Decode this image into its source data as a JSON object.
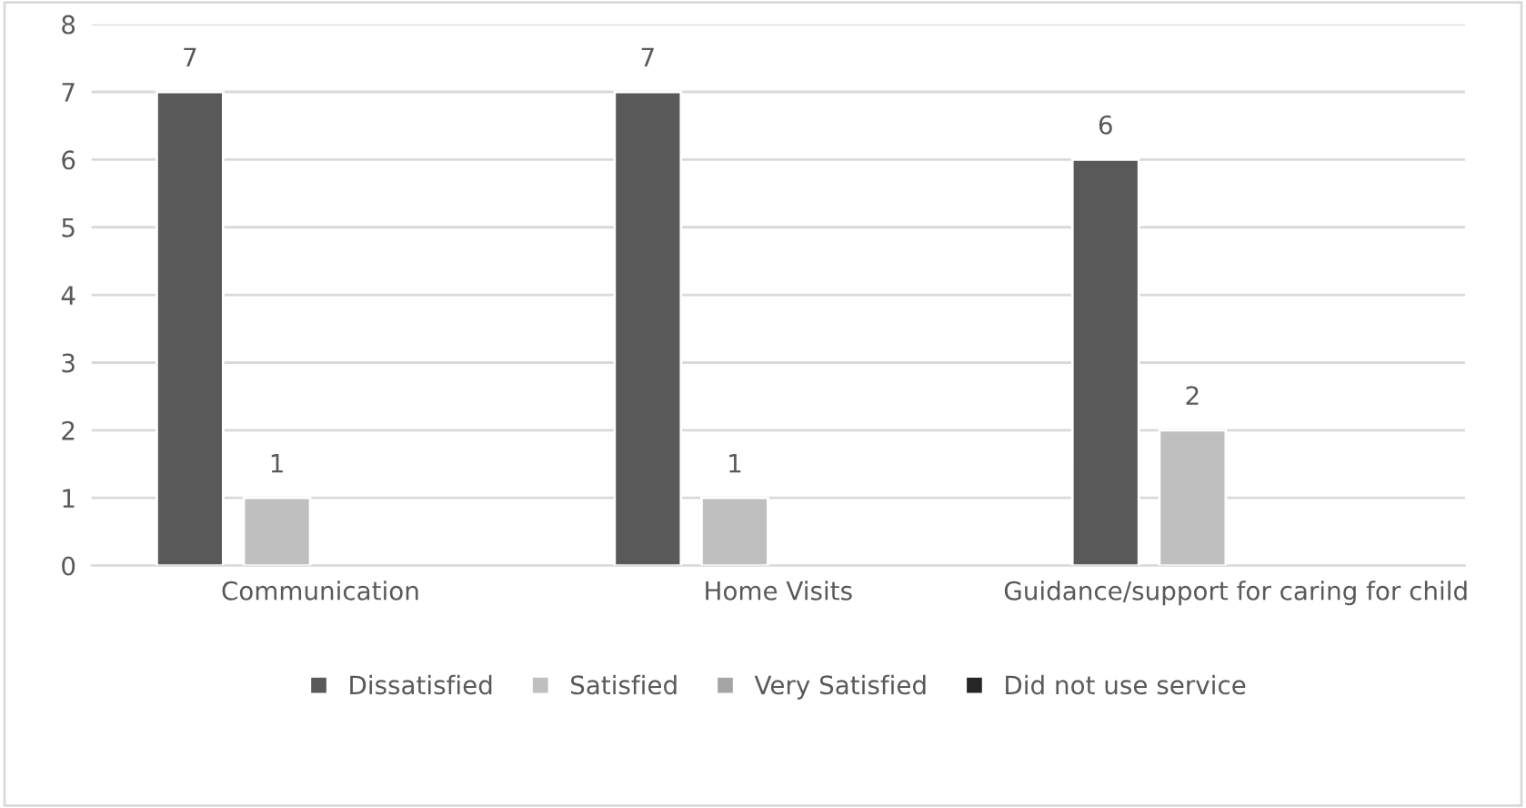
{
  "chart_data": {
    "type": "bar",
    "categories": [
      "Communication",
      "Home Visits",
      "Guidance/support for caring for child"
    ],
    "series": [
      {
        "name": "Dissatisfied",
        "color": "#595959",
        "values": [
          7,
          7,
          6
        ]
      },
      {
        "name": "Satisfied",
        "color": "#bfbfbf",
        "values": [
          1,
          1,
          2
        ]
      },
      {
        "name": "Very Satisfied",
        "color": "#a5a5a5",
        "values": [
          null,
          null,
          null
        ]
      },
      {
        "name": "Did not use service",
        "color": "#262626",
        "values": [
          null,
          null,
          null
        ]
      }
    ],
    "ylim": [
      0,
      8
    ],
    "yticks": [
      0,
      1,
      2,
      3,
      4,
      5,
      6,
      7,
      8
    ],
    "grid": "y",
    "legend": "bottom",
    "data_labels": true
  }
}
